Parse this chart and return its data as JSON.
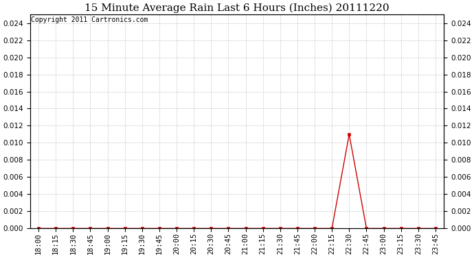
{
  "title": "15 Minute Average Rain Last 6 Hours (Inches) 20111220",
  "copyright_text": "Copyright 2011 Cartronics.com",
  "x_labels": [
    "18:00",
    "18:15",
    "18:30",
    "18:45",
    "19:00",
    "19:15",
    "19:30",
    "19:45",
    "20:00",
    "20:15",
    "20:30",
    "20:45",
    "21:00",
    "21:15",
    "21:30",
    "21:45",
    "22:00",
    "22:15",
    "22:30",
    "22:45",
    "23:00",
    "23:15",
    "23:30",
    "23:45"
  ],
  "y_values": [
    0.0,
    0.0,
    0.0,
    0.0,
    0.0,
    0.0,
    0.0,
    0.0,
    0.0,
    0.0,
    0.0,
    0.0,
    0.0,
    0.0,
    0.0,
    0.0,
    0.0,
    0.0,
    0.011,
    0.0,
    0.0,
    0.0,
    0.0,
    0.0
  ],
  "line_color": "#cc0000",
  "marker_color": "#cc0000",
  "background_color": "#ffffff",
  "grid_color": "#c8c8c8",
  "ylim": [
    0.0,
    0.025
  ],
  "yticks": [
    0.0,
    0.002,
    0.004,
    0.006,
    0.008,
    0.01,
    0.012,
    0.014,
    0.016,
    0.018,
    0.02,
    0.022,
    0.024
  ],
  "title_fontsize": 11,
  "copyright_fontsize": 7,
  "tick_fontsize": 7.5
}
